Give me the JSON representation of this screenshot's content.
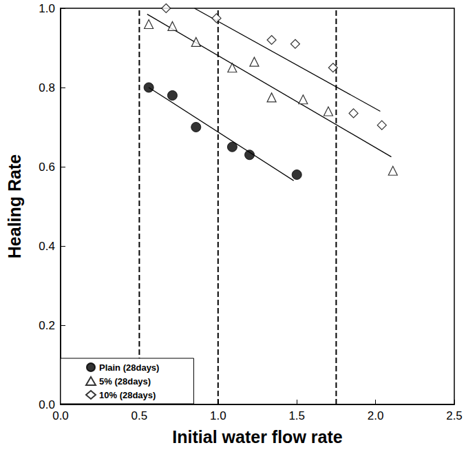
{
  "chart_data": {
    "type": "scatter",
    "x_label": "Initial water flow rate",
    "y_label": "Healing Rate",
    "xlim": [
      0,
      2.5
    ],
    "xticks": [
      {
        "value": 0,
        "label": "0.0"
      },
      0.5,
      {
        "value": 1,
        "label": "1.0"
      },
      1.5,
      {
        "value": 2,
        "label": "2.0"
      },
      2.5
    ],
    "ylim": [
      0,
      1
    ],
    "yticks": [
      {
        "value": 0,
        "label": "0.0"
      },
      0.2,
      0.4,
      0.6,
      0.8,
      {
        "value": 1,
        "label": "1.0"
      }
    ],
    "grid": false,
    "legend": "lower left",
    "vlines": [
      0.5,
      1.0,
      1.75
    ],
    "vline_style": "dashed",
    "series": [
      {
        "name": "Plain (28days)",
        "color": "#000000",
        "marker": "circle",
        "x": [
          0.56,
          0.71,
          0.86,
          1.09,
          1.2,
          1.5
        ],
        "values": [
          0.8,
          0.78,
          0.7,
          0.65,
          0.63,
          0.58
        ],
        "trend": {
          "x": [
            0.56,
            1.48
          ],
          "values": [
            0.8,
            0.565
          ]
        }
      },
      {
        "name": "5% (28days)",
        "color": "#000000",
        "marker": "triangle-open",
        "x": [
          0.56,
          0.71,
          0.86,
          1.09,
          1.23,
          1.34,
          1.54,
          1.7,
          2.11
        ],
        "values": [
          0.96,
          0.955,
          0.915,
          0.85,
          0.865,
          0.775,
          0.77,
          0.74,
          0.59
        ],
        "trend": {
          "x": [
            0.55,
            2.1
          ],
          "values": [
            0.985,
            0.625
          ]
        }
      },
      {
        "name": "10% (28days)",
        "color": "#000000",
        "marker": "diamond-open",
        "x": [
          0.67,
          0.99,
          1.34,
          1.49,
          1.73,
          1.86,
          2.04
        ],
        "values": [
          1.0,
          0.975,
          0.92,
          0.91,
          0.85,
          0.735,
          0.705
        ],
        "trend": {
          "x": [
            0.85,
            2.03
          ],
          "values": [
            1.0,
            0.74
          ]
        }
      }
    ]
  }
}
